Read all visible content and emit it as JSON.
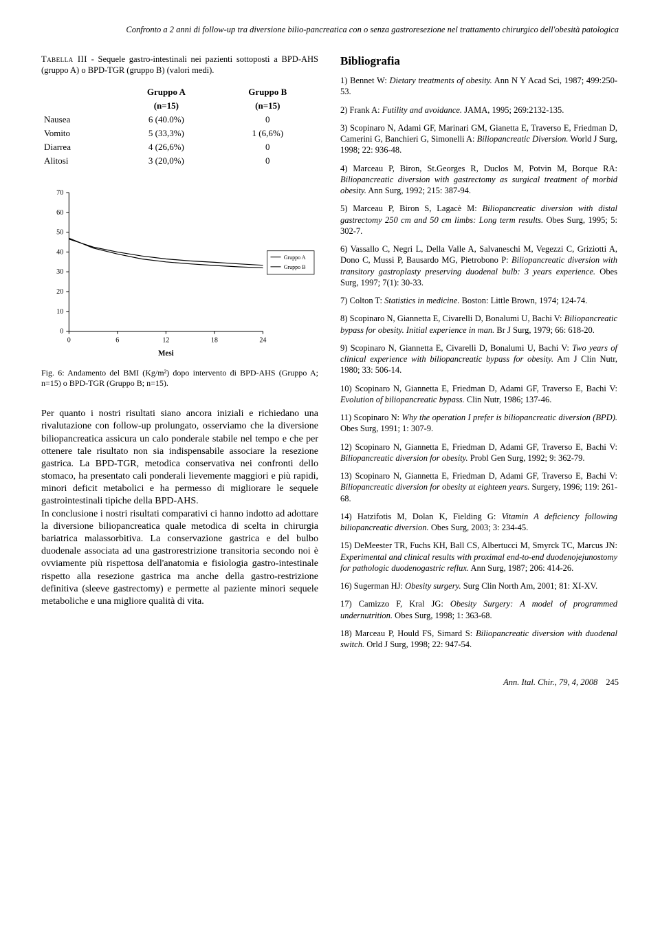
{
  "running_head": "Confronto a 2 anni di follow-up tra diversione bilio-pancreatica con o senza gastroresezione nel trattamento chirurgico dell'obesità patologica",
  "table": {
    "caption_sc": "Tabella III",
    "caption_rest": " - Sequele gastro-intestinali nei pazienti sottoposti a BPD-AHS (gruppo A) o BPD-TGR (gruppo B) (valori medi).",
    "col_a_top": "Gruppo A",
    "col_a_bot": "(n=15)",
    "col_b_top": "Gruppo B",
    "col_b_bot": "(n=15)",
    "rows": [
      {
        "label": "Nausea",
        "a": "6 (40.0%)",
        "b": "0"
      },
      {
        "label": "Vomito",
        "a": "5 (33,3%)",
        "b": "1 (6,6%)"
      },
      {
        "label": "Diarrea",
        "a": "4 (26,6%)",
        "b": "0"
      },
      {
        "label": "Alitosi",
        "a": "3 (20,0%)",
        "b": "0"
      }
    ]
  },
  "chart": {
    "type": "line",
    "background_color": "#ffffff",
    "axis_color": "#000000",
    "axis_width": 1,
    "xlim": [
      0,
      24
    ],
    "ylim": [
      0,
      70
    ],
    "xticks": [
      0,
      6,
      12,
      18,
      24
    ],
    "yticks": [
      0,
      10,
      20,
      30,
      40,
      50,
      60,
      70
    ],
    "xlabel": "Mesi",
    "xlabel_fontsize": 11,
    "xlabel_weight": "bold",
    "tick_fontsize": 10,
    "legend_items": [
      "Gruppo A",
      "Gruppo B"
    ],
    "legend_fontsize": 8,
    "series_a": {
      "color": "#000000",
      "width": 1.2,
      "values": [
        [
          0,
          47
        ],
        [
          3,
          42
        ],
        [
          6,
          39
        ],
        [
          9,
          36.5
        ],
        [
          12,
          35
        ],
        [
          15,
          34
        ],
        [
          18,
          33.2
        ],
        [
          21,
          32.5
        ],
        [
          24,
          32
        ]
      ]
    },
    "series_b": {
      "color": "#000000",
      "width": 1.2,
      "values": [
        [
          0,
          46.5
        ],
        [
          3,
          42.5
        ],
        [
          6,
          40
        ],
        [
          9,
          38
        ],
        [
          12,
          36.5
        ],
        [
          15,
          35.5
        ],
        [
          18,
          34.8
        ],
        [
          21,
          34
        ],
        [
          24,
          33.3
        ]
      ]
    }
  },
  "fig_caption": "Fig. 6: Andamento del BMI (Kg/m²) dopo intervento di BPD-AHS (Gruppo A; n=15) o BPD-TGR (Gruppo B; n=15).",
  "body_para": "Per quanto i nostri risultati siano ancora iniziali e richiedano una rivalutazione con follow-up prolungato, osserviamo che la diversione biliopancreatica assicura un calo ponderale stabile nel tempo e che per ottenere tale risultato non sia indispensabile associare la resezione gastrica. La BPD-TGR, metodica conservativa nei confronti dello stomaco, ha presentato cali ponderali lievemente maggiori e più rapidi, minori deficit metabolici e ha permesso di migliorare le sequele gastrointestinali tipiche della BPD-AHS.\nIn conclusione i nostri risultati comparativi ci hanno indotto ad adottare la diversione biliopancreatica quale metodica di scelta in chirurgia bariatrica malassorbitiva. La conservazione gastrica e del bulbo duodenale associata ad una gastrorestrizione transitoria secondo noi è ovviamente più rispettosa dell'anatomia e fisiologia gastro-intestinale rispetto alla resezione gastrica ma anche della gastro-restrizione definitiva (sleeve gastrectomy) e permette al paziente minori sequele metaboliche e una migliore qualità di vita.",
  "biblio_heading": "Bibliografia",
  "refs": [
    {
      "n": "1)",
      "pre": "Bennet W: ",
      "it": "Dietary treatments of obesity.",
      "post": " Ann N Y Acad Sci, 1987; 499:250-53."
    },
    {
      "n": "2)",
      "pre": "Frank A: ",
      "it": "Futility and avoidance.",
      "post": " JAMA, 1995; 269:2132-135."
    },
    {
      "n": "3)",
      "pre": "Scopinaro N, Adami GF, Marinari GM, Gianetta E, Traverso E, Friedman D, Camerini G, Banchieri G, Simonelli A: ",
      "it": "Biliopancreatic Diversion.",
      "post": " World J Surg, 1998; 22: 936-48."
    },
    {
      "n": "4)",
      "pre": "Marceau P, Biron, St.Georges R, Duclos M, Potvin M, Borque RA: ",
      "it": "Biliopancreatic diversion with gastrectomy as surgical treatment of morbid obesity.",
      "post": " Ann Surg, 1992; 215: 387-94."
    },
    {
      "n": "5)",
      "pre": "Marceau P, Biron S, Lagacè M: ",
      "it": "Biliopancreatic diversion with distal gastrectomy 250 cm and 50 cm limbs: Long term results.",
      "post": " Obes Surg, 1995; 5: 302-7."
    },
    {
      "n": "6)",
      "pre": "Vassallo C, Negri L, Della Valle A, Salvaneschi M, Vegezzi C, Griziotti A, Dono C, Mussi P, Bausardo MG, Pietrobono P: ",
      "it": "Biliopancreatic diversion with transitory gastroplasty preserving duodenal bulb: 3 years experience.",
      "post": " Obes Surg, 1997; 7(1): 30-33."
    },
    {
      "n": "7)",
      "pre": "Colton T: ",
      "it": "Statistics in medicine.",
      "post": " Boston: Little Brown, 1974; 124-74."
    },
    {
      "n": "8)",
      "pre": "Scopinaro N, Giannetta E, Civarelli D, Bonalumi U, Bachi V: ",
      "it": "Biliopancreatic bypass for obesity. Initial experience in man.",
      "post": " Br J Surg, 1979; 66: 618-20."
    },
    {
      "n": "9)",
      "pre": "Scopinaro N, Giannetta E, Civarelli D, Bonalumi U, Bachi V: ",
      "it": "Two years of clinical experience with biliopancreatic bypass for obesity.",
      "post": " Am J Clin Nutr, 1980; 33: 506-14."
    },
    {
      "n": "10)",
      "pre": "Scopinaro N, Giannetta E, Friedman D, Adami GF, Traverso E, Bachi V: ",
      "it": "Evolution of biliopancreatic bypass.",
      "post": " Clin Nutr, 1986; 137-46."
    },
    {
      "n": "11)",
      "pre": "Scopinaro N: ",
      "it": "Why the operation I prefer is biliopancreatic diversion (BPD).",
      "post": " Obes Surg, 1991; 1: 307-9."
    },
    {
      "n": "12)",
      "pre": "Scopinaro N, Giannetta E, Friedman D, Adami GF, Traverso E, Bachi V: ",
      "it": "Biliopancreatic diversion for obesity.",
      "post": " Probl Gen Surg, 1992; 9: 362-79."
    },
    {
      "n": "13)",
      "pre": "Scopinaro N, Giannetta E, Friedman D, Adami GF, Traverso E, Bachi V: ",
      "it": "Biliopancreatic diversion for obesity at eighteen years.",
      "post": " Surgery, 1996; 119: 261-68."
    },
    {
      "n": "14)",
      "pre": "Hatzifotis M, Dolan K, Fielding G: ",
      "it": "Vitamin A deficiency following biliopancreatic diversion.",
      "post": " Obes Surg, 2003; 3: 234-45."
    },
    {
      "n": "15)",
      "pre": "DeMeester TR, Fuchs KH, Ball CS, Albertucci M, Smyrck TC, Marcus JN: ",
      "it": "Experimental and clinical results with proximal end-to-end duodenojejunostomy for pathologic duodenogastric reflux.",
      "post": " Ann Surg, 1987; 206: 414-26."
    },
    {
      "n": "16)",
      "pre": "Sugerman HJ: ",
      "it": "Obesity surgery.",
      "post": " Surg Clin North Am, 2001; 81: XI-XV."
    },
    {
      "n": "17)",
      "pre": "Camizzo F, Kral JG: ",
      "it": "Obesity Surgery: A model of programmed undernutrition.",
      "post": " Obes Surg, 1998; 1: 363-68."
    },
    {
      "n": "18)",
      "pre": "Marceau P, Hould FS, Simard S: ",
      "it": "Biliopancreatic diversion with duodenal switch.",
      "post": " Orld J Surg, 1998; 22: 947-54."
    }
  ],
  "footer_journal": "Ann. Ital. Chir., 79, 4, 2008",
  "footer_page": "245"
}
